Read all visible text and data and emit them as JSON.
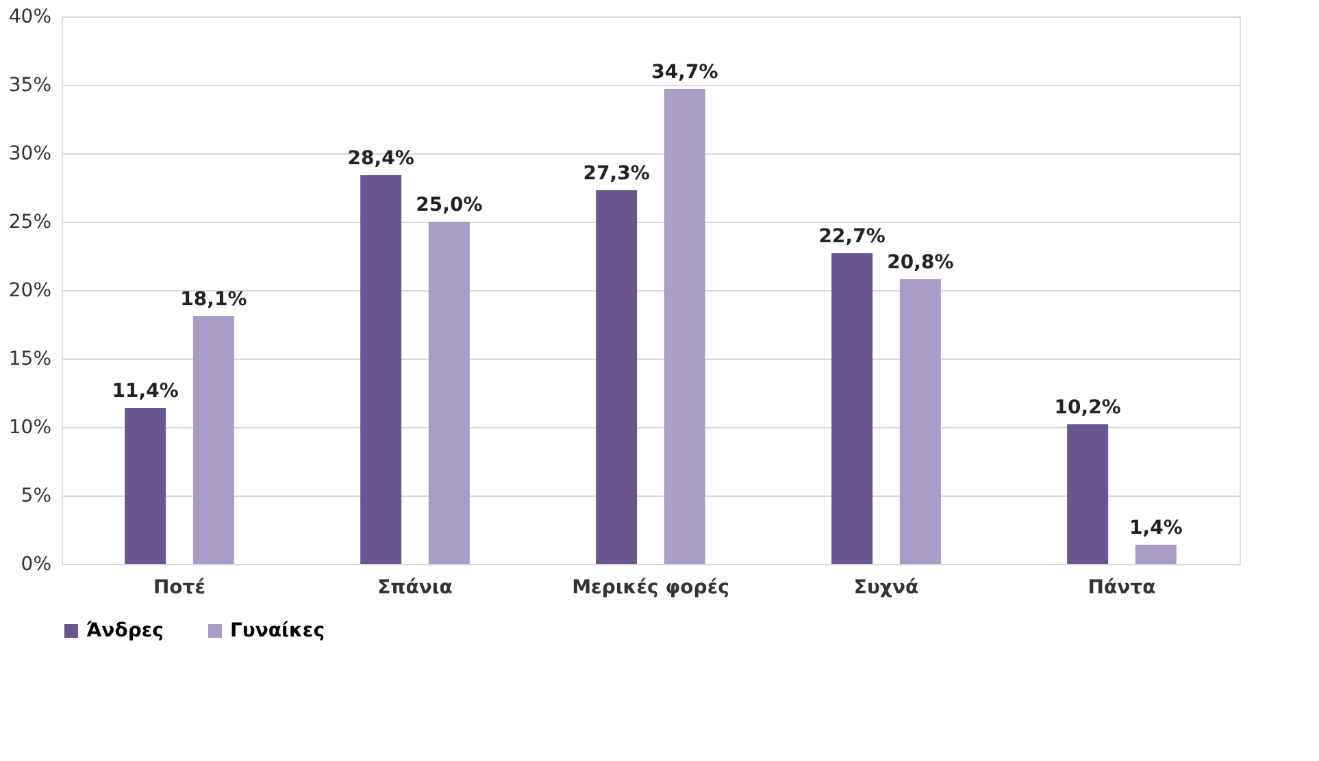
{
  "chart_data": {
    "type": "bar",
    "categories": [
      "Ποτέ",
      "Σπάνια",
      "Μερικές φορές",
      "Συχνά",
      "Πάντα"
    ],
    "series": [
      {
        "name": "Άνδρες",
        "color": "#6b5590",
        "values": [
          11.4,
          28.4,
          27.3,
          22.7,
          10.2
        ],
        "value_labels": [
          "11,4%",
          "28,4%",
          "27,3%",
          "22,7%",
          "10,2%"
        ]
      },
      {
        "name": "Γυναίκες",
        "color": "#a99cc6",
        "values": [
          18.1,
          25.0,
          34.7,
          20.8,
          1.4
        ],
        "value_labels": [
          "18,1%",
          "25,0%",
          "34,7%",
          "20,8%",
          "1,4%"
        ]
      }
    ],
    "ylim": [
      0,
      40
    ],
    "yticks": [
      {
        "value": 0,
        "label": "0%"
      },
      {
        "value": 5,
        "label": "5%"
      },
      {
        "value": 10,
        "label": "10%"
      },
      {
        "value": 15,
        "label": "15%"
      },
      {
        "value": 20,
        "label": "20%"
      },
      {
        "value": 25,
        "label": "25%"
      },
      {
        "value": 30,
        "label": "30%"
      },
      {
        "value": 35,
        "label": "35%"
      },
      {
        "value": 40,
        "label": "40%"
      }
    ],
    "grid": "y",
    "legend": "bottom"
  }
}
